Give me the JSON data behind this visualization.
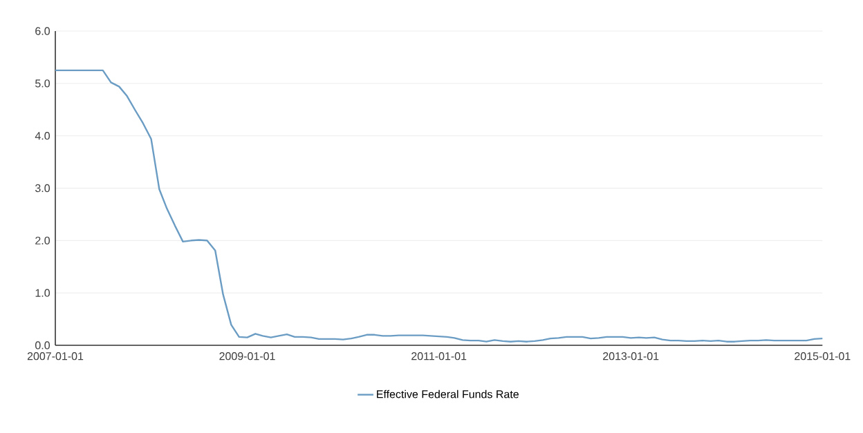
{
  "chart_data": {
    "type": "line",
    "x": [
      "2007-01",
      "2007-02",
      "2007-03",
      "2007-04",
      "2007-05",
      "2007-06",
      "2007-07",
      "2007-08",
      "2007-09",
      "2007-10",
      "2007-11",
      "2007-12",
      "2008-01",
      "2008-02",
      "2008-03",
      "2008-04",
      "2008-05",
      "2008-06",
      "2008-07",
      "2008-08",
      "2008-09",
      "2008-10",
      "2008-11",
      "2008-12",
      "2009-01",
      "2009-02",
      "2009-03",
      "2009-04",
      "2009-05",
      "2009-06",
      "2009-07",
      "2009-08",
      "2009-09",
      "2009-10",
      "2009-11",
      "2009-12",
      "2010-01",
      "2010-02",
      "2010-03",
      "2010-04",
      "2010-05",
      "2010-06",
      "2010-07",
      "2010-08",
      "2010-09",
      "2010-10",
      "2010-11",
      "2010-12",
      "2011-01",
      "2011-02",
      "2011-03",
      "2011-04",
      "2011-05",
      "2011-06",
      "2011-07",
      "2011-08",
      "2011-09",
      "2011-10",
      "2011-11",
      "2011-12",
      "2012-01",
      "2012-02",
      "2012-03",
      "2012-04",
      "2012-05",
      "2012-06",
      "2012-07",
      "2012-08",
      "2012-09",
      "2012-10",
      "2012-11",
      "2012-12",
      "2013-01",
      "2013-02",
      "2013-03",
      "2013-04",
      "2013-05",
      "2013-06",
      "2013-07",
      "2013-08",
      "2013-09",
      "2013-10",
      "2013-11",
      "2013-12",
      "2014-01",
      "2014-02",
      "2014-03",
      "2014-04",
      "2014-05",
      "2014-06",
      "2014-07",
      "2014-08",
      "2014-09",
      "2014-10",
      "2014-11",
      "2014-12",
      "2015-01"
    ],
    "series": [
      {
        "name": "Effective Federal Funds Rate",
        "color": "#6a9cc4",
        "values": [
          5.25,
          5.25,
          5.25,
          5.25,
          5.25,
          5.25,
          5.25,
          5.02,
          4.94,
          4.76,
          4.49,
          4.24,
          3.94,
          2.98,
          2.61,
          2.28,
          1.98,
          2.0,
          2.01,
          2.0,
          1.81,
          0.97,
          0.39,
          0.16,
          0.15,
          0.22,
          0.18,
          0.15,
          0.18,
          0.21,
          0.16,
          0.16,
          0.15,
          0.12,
          0.12,
          0.12,
          0.11,
          0.13,
          0.16,
          0.2,
          0.2,
          0.18,
          0.18,
          0.19,
          0.19,
          0.19,
          0.19,
          0.18,
          0.17,
          0.16,
          0.14,
          0.1,
          0.09,
          0.09,
          0.07,
          0.1,
          0.08,
          0.07,
          0.08,
          0.07,
          0.08,
          0.1,
          0.13,
          0.14,
          0.16,
          0.16,
          0.16,
          0.13,
          0.14,
          0.16,
          0.16,
          0.16,
          0.14,
          0.15,
          0.14,
          0.15,
          0.11,
          0.09,
          0.09,
          0.08,
          0.08,
          0.09,
          0.08,
          0.09,
          0.07,
          0.07,
          0.08,
          0.09,
          0.09,
          0.1,
          0.09,
          0.09,
          0.09,
          0.09,
          0.09,
          0.12,
          0.13
        ]
      }
    ],
    "xlim": [
      "2007-01-01",
      "2015-01-01"
    ],
    "xticks": [
      "2007-01-01",
      "2009-01-01",
      "2011-01-01",
      "2013-01-01",
      "2015-01-01"
    ],
    "ylim": [
      0,
      6
    ],
    "yticks": [
      {
        "value": 0,
        "label": "0.0"
      },
      {
        "value": 1,
        "label": "1.0"
      },
      {
        "value": 2,
        "label": "2.0"
      },
      {
        "value": 3,
        "label": "3.0"
      },
      {
        "value": 4,
        "label": "4.0"
      },
      {
        "value": 5,
        "label": "5.0"
      },
      {
        "value": 6,
        "label": "6.0"
      }
    ],
    "grid": "y",
    "legend": "bottom",
    "marker": "none",
    "line_style": "solid"
  }
}
